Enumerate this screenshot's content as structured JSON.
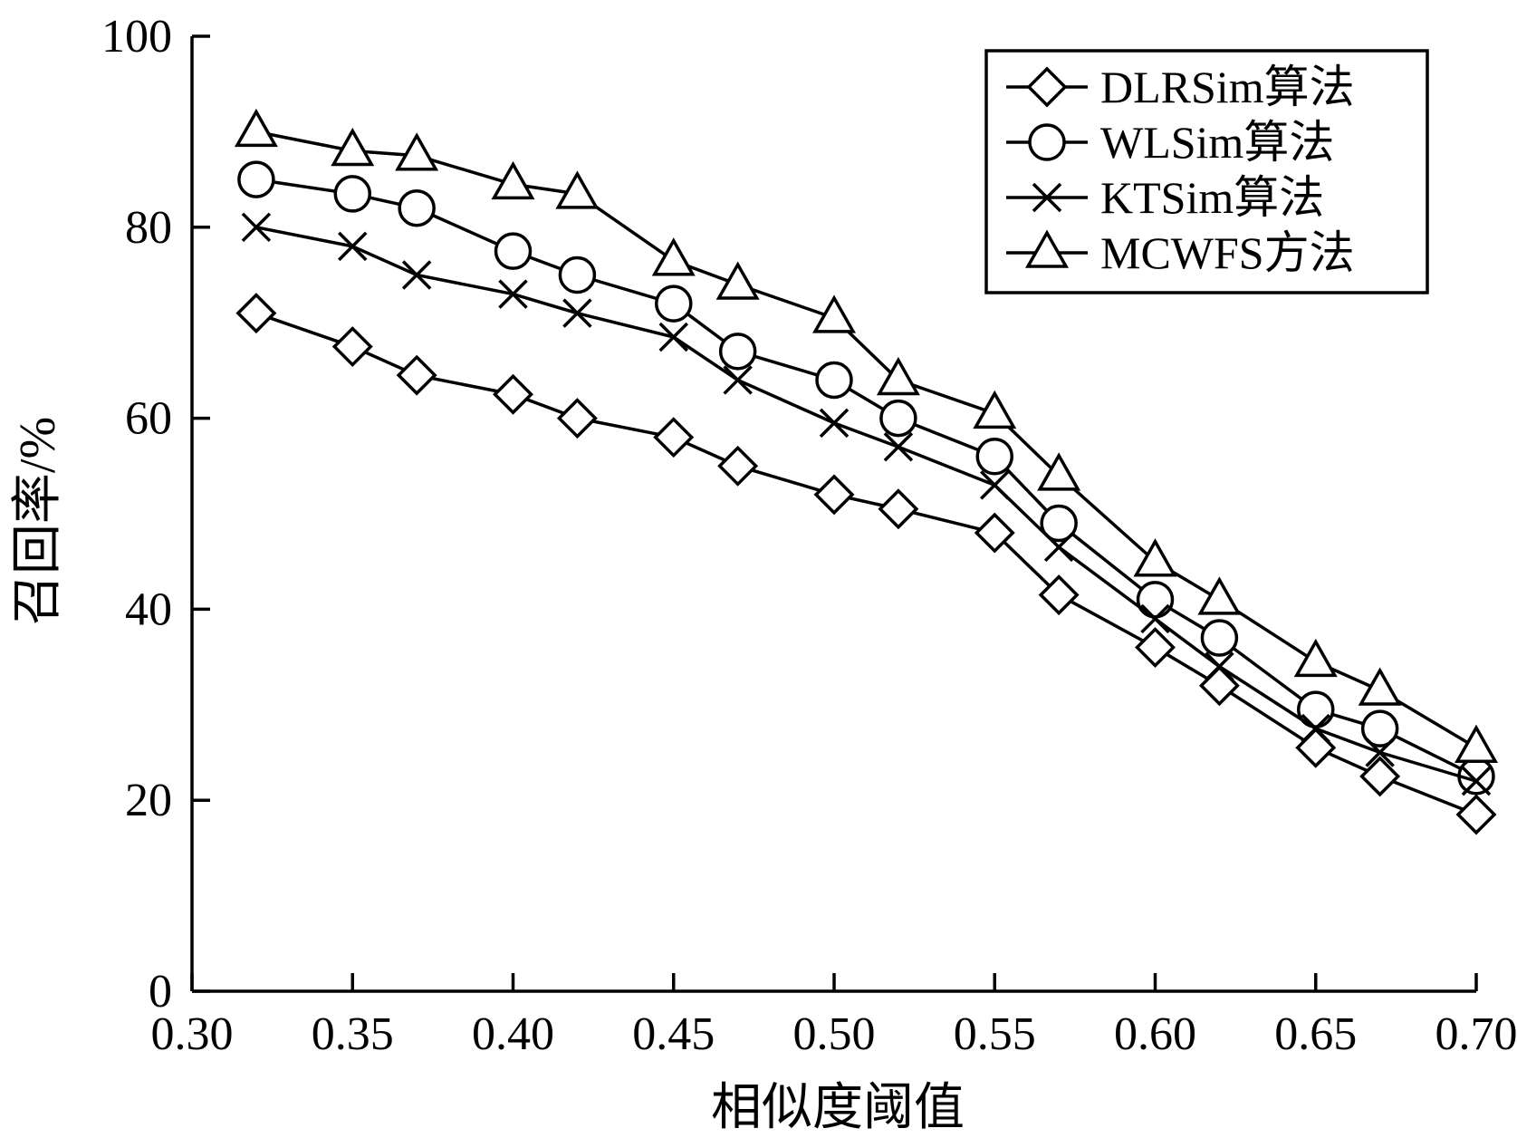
{
  "chart_data": {
    "type": "line",
    "xlabel": "相似度阈值",
    "ylabel": "召回率/%",
    "xlim": [
      0.3,
      0.7
    ],
    "ylim": [
      0,
      100
    ],
    "xticks": [
      "0.30",
      "0.35",
      "0.40",
      "0.45",
      "0.50",
      "0.55",
      "0.60",
      "0.65",
      "0.70"
    ],
    "yticks": [
      "0",
      "20",
      "40",
      "60",
      "80",
      "100"
    ],
    "legend_position": "top-right",
    "series": [
      {
        "name": "DLRSim算法",
        "marker": "diamond",
        "x": [
          0.32,
          0.35,
          0.37,
          0.4,
          0.42,
          0.45,
          0.47,
          0.5,
          0.52,
          0.55,
          0.57,
          0.6,
          0.62,
          0.65,
          0.67,
          0.7
        ],
        "values": [
          71,
          67.5,
          64.5,
          62.5,
          60,
          58,
          55,
          52,
          50.5,
          48,
          41.5,
          36,
          32,
          25.5,
          22.5,
          18.5
        ]
      },
      {
        "name": "WLSim算法",
        "marker": "circle",
        "x": [
          0.32,
          0.35,
          0.37,
          0.4,
          0.42,
          0.45,
          0.47,
          0.5,
          0.52,
          0.55,
          0.57,
          0.6,
          0.62,
          0.65,
          0.67,
          0.7
        ],
        "values": [
          85,
          83.5,
          82,
          77.5,
          75,
          72,
          67,
          64,
          60,
          56,
          49,
          41,
          37,
          29.5,
          27.5,
          22.5
        ]
      },
      {
        "name": "KTSim算法",
        "marker": "x",
        "x": [
          0.32,
          0.35,
          0.37,
          0.4,
          0.42,
          0.45,
          0.47,
          0.5,
          0.52,
          0.55,
          0.57,
          0.6,
          0.62,
          0.65,
          0.67,
          0.7
        ],
        "values": [
          80,
          78,
          75,
          73,
          71,
          68.5,
          64,
          59.5,
          57,
          53,
          46.5,
          39,
          34,
          27.5,
          25,
          22
        ]
      },
      {
        "name": "MCWFS方法",
        "marker": "triangle",
        "x": [
          0.32,
          0.35,
          0.37,
          0.4,
          0.42,
          0.45,
          0.47,
          0.5,
          0.52,
          0.55,
          0.57,
          0.6,
          0.62,
          0.65,
          0.67,
          0.7
        ],
        "values": [
          90,
          88,
          87.5,
          84.5,
          83.5,
          76.5,
          74,
          70.5,
          64,
          60.5,
          54,
          45,
          41,
          34.5,
          31.5,
          25.5
        ]
      }
    ]
  }
}
